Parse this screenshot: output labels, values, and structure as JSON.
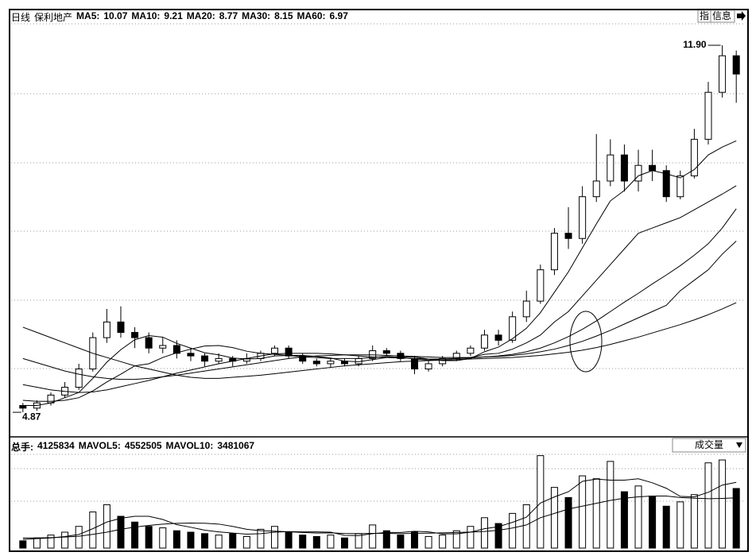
{
  "chart_data": [
    {
      "type": "candlestick",
      "period": "日线",
      "title": "保利地产",
      "open": [
        5.0,
        4.95,
        5.05,
        5.2,
        5.35,
        5.7,
        6.3,
        6.6,
        6.4,
        6.3,
        6.1,
        6.15,
        6.0,
        5.95,
        5.85,
        5.9,
        5.85,
        5.9,
        6.0,
        6.1,
        5.95,
        5.85,
        5.8,
        5.85,
        5.8,
        5.9,
        6.05,
        6.0,
        5.9,
        5.7,
        5.8,
        5.9,
        6.0,
        6.1,
        6.35,
        6.25,
        6.7,
        7.0,
        7.6,
        8.3,
        8.2,
        9.0,
        9.3,
        9.8,
        9.3,
        9.6,
        9.5,
        9.0,
        9.4,
        10.1,
        11.0,
        11.7
      ],
      "close": [
        4.95,
        5.05,
        5.2,
        5.35,
        5.7,
        6.3,
        6.6,
        6.4,
        6.3,
        6.1,
        6.15,
        6.0,
        5.95,
        5.85,
        5.9,
        5.85,
        5.9,
        6.0,
        6.1,
        5.95,
        5.85,
        5.8,
        5.85,
        5.8,
        5.9,
        6.05,
        6.0,
        5.9,
        5.7,
        5.8,
        5.9,
        6.0,
        6.1,
        6.35,
        6.25,
        6.7,
        7.0,
        7.6,
        8.3,
        8.2,
        9.0,
        9.3,
        9.8,
        9.3,
        9.6,
        9.5,
        9.0,
        9.4,
        10.1,
        11.0,
        11.7,
        11.35
      ],
      "high": [
        5.05,
        5.1,
        5.25,
        5.45,
        5.8,
        6.4,
        6.85,
        6.9,
        6.5,
        6.4,
        6.3,
        6.25,
        6.1,
        6.0,
        6.0,
        5.95,
        6.0,
        6.05,
        6.15,
        6.15,
        6.0,
        5.9,
        5.9,
        5.9,
        5.95,
        6.15,
        6.1,
        6.05,
        5.95,
        5.85,
        5.95,
        6.05,
        6.15,
        6.45,
        6.45,
        6.8,
        7.2,
        7.7,
        8.4,
        8.8,
        9.2,
        10.2,
        10.1,
        10.0,
        9.9,
        9.9,
        9.6,
        9.5,
        10.3,
        11.2,
        11.9,
        11.8
      ],
      "low": [
        4.87,
        4.9,
        5.0,
        5.15,
        5.3,
        5.65,
        6.2,
        6.3,
        6.1,
        6.0,
        6.0,
        5.9,
        5.85,
        5.75,
        5.8,
        5.75,
        5.8,
        5.85,
        5.95,
        5.9,
        5.8,
        5.75,
        5.72,
        5.75,
        5.75,
        5.85,
        5.95,
        5.85,
        5.6,
        5.65,
        5.75,
        5.85,
        5.95,
        6.05,
        6.15,
        6.2,
        6.6,
        6.95,
        7.5,
        8.0,
        8.1,
        8.9,
        9.2,
        9.1,
        9.1,
        9.3,
        8.9,
        8.95,
        9.35,
        10.0,
        10.9,
        10.8
      ],
      "series": [
        {
          "name": "MA5:",
          "color": "#000000",
          "values": [
            5.0,
            5.0,
            5.05,
            5.15,
            5.25,
            5.52,
            5.83,
            6.07,
            6.26,
            6.34,
            6.31,
            6.19,
            6.1,
            6.01,
            5.97,
            5.91,
            5.89,
            5.9,
            5.95,
            5.96,
            5.96,
            5.94,
            5.91,
            5.85,
            5.84,
            5.88,
            5.92,
            5.93,
            5.93,
            5.89,
            5.86,
            5.86,
            5.9,
            6.03,
            6.12,
            6.28,
            6.48,
            6.78,
            7.17,
            7.56,
            8.02,
            8.48,
            8.92,
            9.12,
            9.4,
            9.5,
            9.44,
            9.36,
            9.52,
            9.8,
            9.95,
            10.07
          ]
        },
        {
          "name": "MA10:",
          "color": "#000000",
          "values": [
            5.1,
            5.08,
            5.08,
            5.1,
            5.15,
            5.28,
            5.45,
            5.6,
            5.76,
            5.8,
            5.92,
            6.01,
            6.08,
            6.14,
            6.15,
            6.11,
            6.04,
            6.0,
            5.98,
            5.96,
            5.93,
            5.92,
            5.9,
            5.9,
            5.9,
            5.92,
            5.94,
            5.92,
            5.89,
            5.87,
            5.89,
            5.9,
            5.92,
            5.98,
            6.0,
            6.08,
            6.2,
            6.35,
            6.6,
            6.8,
            7.1,
            7.4,
            7.7,
            8.0,
            8.3,
            8.4,
            8.5,
            8.6,
            8.75,
            8.9,
            9.05,
            9.21
          ]
        },
        {
          "name": "MA20:",
          "color": "#000000",
          "values": [
            5.4,
            5.35,
            5.3,
            5.27,
            5.25,
            5.26,
            5.3,
            5.36,
            5.42,
            5.48,
            5.55,
            5.62,
            5.68,
            5.74,
            5.8,
            5.85,
            5.9,
            5.95,
            5.99,
            6.0,
            6.0,
            6.0,
            5.99,
            5.97,
            5.95,
            5.93,
            5.92,
            5.91,
            5.9,
            5.89,
            5.89,
            5.9,
            5.91,
            5.93,
            5.95,
            5.98,
            6.03,
            6.1,
            6.2,
            6.32,
            6.46,
            6.62,
            6.8,
            6.98,
            7.15,
            7.33,
            7.5,
            7.68,
            7.88,
            8.1,
            8.4,
            8.77
          ]
        },
        {
          "name": "MA30:",
          "color": "#000000",
          "values": [
            5.9,
            5.82,
            5.74,
            5.66,
            5.6,
            5.55,
            5.52,
            5.5,
            5.5,
            5.52,
            5.55,
            5.58,
            5.62,
            5.66,
            5.7,
            5.74,
            5.78,
            5.82,
            5.86,
            5.9,
            5.93,
            5.95,
            5.96,
            5.97,
            5.97,
            5.97,
            5.96,
            5.95,
            5.94,
            5.93,
            5.92,
            5.92,
            5.92,
            5.93,
            5.94,
            5.96,
            5.99,
            6.03,
            6.08,
            6.15,
            6.23,
            6.33,
            6.44,
            6.56,
            6.68,
            6.8,
            6.92,
            7.2,
            7.4,
            7.6,
            7.9,
            8.15
          ]
        },
        {
          "name": "MA60:",
          "color": "#000000",
          "values": [
            6.5,
            6.4,
            6.3,
            6.2,
            6.1,
            6.0,
            5.92,
            5.84,
            5.76,
            5.7,
            5.64,
            5.58,
            5.54,
            5.52,
            5.52,
            5.54,
            5.56,
            5.58,
            5.61,
            5.64,
            5.67,
            5.7,
            5.73,
            5.76,
            5.78,
            5.8,
            5.82,
            5.84,
            5.85,
            5.86,
            5.87,
            5.88,
            5.89,
            5.9,
            5.91,
            5.92,
            5.94,
            5.96,
            5.99,
            6.02,
            6.06,
            6.11,
            6.17,
            6.24,
            6.31,
            6.39,
            6.47,
            6.55,
            6.64,
            6.74,
            6.85,
            6.97
          ]
        }
      ],
      "high_mark": {
        "value": 11.9,
        "label": "11.90"
      },
      "low_mark": 4.87,
      "ylim": [
        4.43,
        12.54
      ],
      "buttons": [
        "指",
        "信息"
      ]
    },
    {
      "type": "bar",
      "title": "成交量",
      "name": "总手:",
      "values": [
        500000,
        700000,
        900000,
        1100000,
        1500000,
        2500000,
        3000000,
        2200000,
        1800000,
        1500000,
        1400000,
        1200000,
        1100000,
        1000000,
        900000,
        1000000,
        800000,
        1300000,
        1500000,
        1100000,
        900000,
        800000,
        900000,
        700000,
        1000000,
        1600000,
        1200000,
        900000,
        1100000,
        800000,
        900000,
        1200000,
        1500000,
        2100000,
        1700000,
        2400000,
        3000000,
        6400000,
        4200000,
        3500000,
        5000000,
        4800000,
        6000000,
        3900000,
        4300000,
        3600000,
        2900000,
        3200000,
        3700000,
        5900000,
        6100000,
        4125834
      ],
      "series": [
        {
          "name": "MAVOL5:",
          "color": "#000000",
          "values": [
            600000,
            650000,
            700000,
            800000,
            940000,
            1340000,
            1800000,
            2060000,
            2200000,
            2200000,
            1980000,
            1620000,
            1440000,
            1240000,
            1120000,
            1040000,
            960000,
            1000000,
            1100000,
            1140000,
            1120000,
            1120000,
            1100000,
            880000,
            860000,
            1000000,
            1080000,
            1080000,
            1160000,
            1120000,
            980000,
            980000,
            1100000,
            1340000,
            1480000,
            1780000,
            2140000,
            3120000,
            3540000,
            3900000,
            4620000,
            4780000,
            4700000,
            4700000,
            4800000,
            4520000,
            4140000,
            3580000,
            3540000,
            3860000,
            4360000,
            4552505
          ]
        },
        {
          "name": "MAVOL10:",
          "color": "#000000",
          "values": [
            700000,
            700000,
            720000,
            760000,
            820000,
            950000,
            1100000,
            1300000,
            1450000,
            1570000,
            1660000,
            1710000,
            1730000,
            1720000,
            1660000,
            1500000,
            1300000,
            1200000,
            1170000,
            1130000,
            1080000,
            1040000,
            1050000,
            1010000,
            1000000,
            1020000,
            1020000,
            1000000,
            1020000,
            1030000,
            1050000,
            1080000,
            1110000,
            1150000,
            1230000,
            1390000,
            1600000,
            2100000,
            2400000,
            2700000,
            2900000,
            3100000,
            3300000,
            3450000,
            3550000,
            3600000,
            3600000,
            3500000,
            3450000,
            3420000,
            3440000,
            3481067
          ]
        }
      ],
      "ylim": [
        0,
        6600000
      ]
    }
  ]
}
